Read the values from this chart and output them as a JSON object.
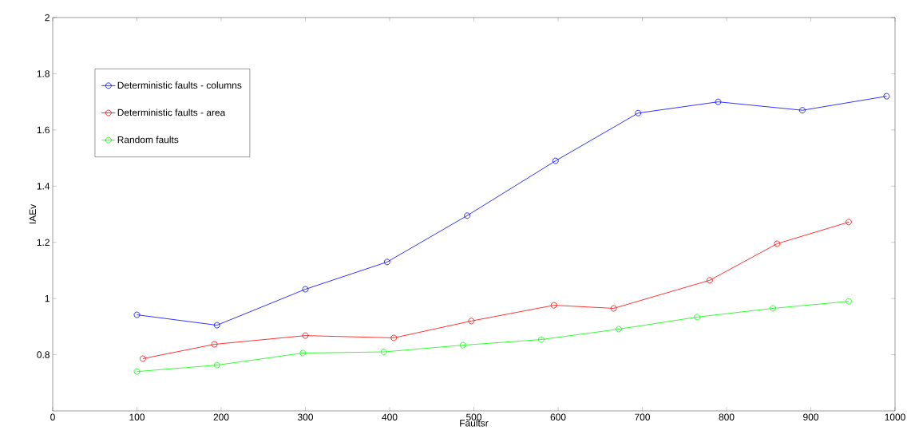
{
  "chart_data": {
    "type": "line",
    "xlabel": "Faultsr",
    "ylabel": "IAEv",
    "xlim": [
      0,
      1000
    ],
    "xticks": [
      0,
      100,
      200,
      300,
      400,
      500,
      600,
      700,
      800,
      900,
      1000
    ],
    "ylim": [
      0.6,
      2
    ],
    "yticks": [
      0.8,
      1,
      1.2,
      1.4,
      1.6,
      1.8,
      2
    ],
    "grid": false,
    "legend": "top left",
    "marker": "circle",
    "line_style": "solid",
    "series": [
      {
        "name": "Deterministic faults - columns",
        "color": "#0000ff",
        "x": [
          100,
          195,
          300,
          397,
          492,
          597,
          695,
          790,
          890,
          990
        ],
        "values": [
          0.942,
          0.905,
          1.033,
          1.13,
          1.295,
          1.49,
          1.66,
          1.7,
          1.67,
          1.72
        ]
      },
      {
        "name": "Deterministic faults - area",
        "color": "#ff0000",
        "x": [
          107,
          192,
          300,
          405,
          497,
          595,
          666,
          780,
          860,
          945
        ],
        "values": [
          0.786,
          0.837,
          0.868,
          0.86,
          0.92,
          0.976,
          0.965,
          1.065,
          1.195,
          1.272
        ]
      },
      {
        "name": "Random faults",
        "color": "#00ff00",
        "x": [
          100,
          195,
          297,
          393,
          487,
          580,
          672,
          765,
          855,
          945
        ],
        "values": [
          0.74,
          0.763,
          0.806,
          0.81,
          0.834,
          0.854,
          0.891,
          0.934,
          0.965,
          0.99
        ]
      }
    ]
  }
}
